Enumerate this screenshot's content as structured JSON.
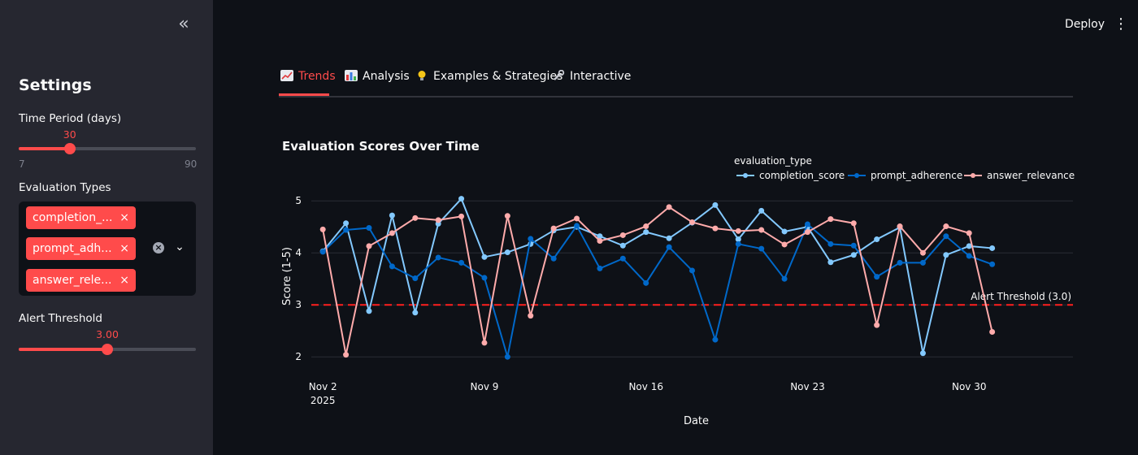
{
  "sidebar": {
    "collapse_icon": "double-chevron-left-icon",
    "title": "Settings",
    "time_period": {
      "label": "Time Period (days)",
      "value": "30",
      "min": "7",
      "max": "90",
      "fraction": 0.2877
    },
    "eval_types": {
      "label": "Evaluation Types",
      "tags": [
        {
          "label": "completion_...",
          "remove": "×"
        },
        {
          "label": "prompt_adh...",
          "remove": "×"
        },
        {
          "label": "answer_rele...",
          "remove": "×"
        }
      ],
      "clear_icon": "×",
      "dropdown_icon": "⌄"
    },
    "alert_threshold": {
      "label": "Alert Threshold",
      "value": "3.00",
      "fraction": 0.5
    }
  },
  "header": {
    "deploy_label": "Deploy",
    "menu_icon": "⋮"
  },
  "tabs": [
    {
      "label": "Trends",
      "icon": "chart-increasing-icon",
      "active": true
    },
    {
      "label": "Analysis",
      "icon": "bar-chart-icon",
      "active": false
    },
    {
      "label": "Examples & Strategies",
      "icon": "light-bulb-icon",
      "active": false
    },
    {
      "label": "Interactive",
      "icon": "wrench-icon",
      "active": false
    }
  ],
  "chart_data": {
    "type": "line",
    "title": "Evaluation Scores Over Time",
    "xlabel": "Date",
    "ylabel": "Score (1-5)",
    "legend_title": "evaluation_type",
    "legend_position": "top-right",
    "ylim": [
      1.8,
      5.3
    ],
    "yticks": [
      2,
      3,
      4,
      5
    ],
    "xlim": [
      "2025-11-01T12:00",
      "2025-12-04T12:00"
    ],
    "xticks": [
      {
        "date": "2025-11-02",
        "label": "Nov 2",
        "sublabel": "2025"
      },
      {
        "date": "2025-11-09",
        "label": "Nov 9",
        "sublabel": ""
      },
      {
        "date": "2025-11-16",
        "label": "Nov 16",
        "sublabel": ""
      },
      {
        "date": "2025-11-23",
        "label": "Nov 23",
        "sublabel": ""
      },
      {
        "date": "2025-11-30",
        "label": "Nov 30",
        "sublabel": ""
      }
    ],
    "dates": [
      "2025-11-02",
      "2025-11-03",
      "2025-11-04",
      "2025-11-05",
      "2025-11-06",
      "2025-11-07",
      "2025-11-08",
      "2025-11-09",
      "2025-11-10",
      "2025-11-11",
      "2025-11-12",
      "2025-11-13",
      "2025-11-14",
      "2025-11-15",
      "2025-11-16",
      "2025-11-17",
      "2025-11-18",
      "2025-11-19",
      "2025-11-20",
      "2025-11-21",
      "2025-11-22",
      "2025-11-23",
      "2025-11-24",
      "2025-11-25",
      "2025-11-26",
      "2025-11-27",
      "2025-11-28",
      "2025-11-29",
      "2025-11-30",
      "2025-12-01",
      "2025-12-02",
      "2025-12-03"
    ],
    "threshold": {
      "value": 3.0,
      "label": "Alert Threshold (3.0)",
      "color": "#ff1f1f"
    },
    "series": [
      {
        "name": "completion_score",
        "color": "#83c9ff",
        "values": [
          4.03,
          4.57,
          2.88,
          4.72,
          2.85,
          4.56,
          5.04,
          3.92,
          4.01,
          4.17,
          4.43,
          4.5,
          4.32,
          4.14,
          4.4,
          4.28,
          4.58,
          4.92,
          4.26,
          4.81,
          4.41,
          4.5,
          3.82,
          3.96,
          4.26,
          4.49,
          2.07,
          3.96,
          4.13,
          4.09,
          null,
          null
        ]
      },
      {
        "name": "prompt_adherence",
        "color": "#0068c9",
        "values": [
          4.02,
          4.44,
          4.48,
          3.74,
          3.51,
          3.91,
          3.81,
          3.52,
          2.0,
          4.27,
          3.89,
          4.52,
          3.7,
          3.89,
          3.42,
          4.11,
          3.66,
          2.33,
          4.17,
          4.08,
          3.5,
          4.55,
          4.17,
          4.14,
          3.54,
          3.81,
          3.81,
          4.32,
          3.94,
          3.78,
          null,
          null
        ]
      },
      {
        "name": "answer_relevance",
        "color": "#ffabab",
        "values": [
          4.45,
          2.04,
          4.13,
          4.38,
          4.67,
          4.63,
          4.7,
          2.27,
          4.71,
          2.79,
          4.47,
          4.66,
          4.23,
          4.34,
          4.51,
          4.88,
          4.59,
          4.47,
          4.42,
          4.44,
          4.16,
          4.4,
          4.65,
          4.57,
          2.61,
          4.51,
          4.0,
          4.51,
          4.38,
          2.48,
          null,
          null
        ]
      }
    ],
    "grid": true
  }
}
